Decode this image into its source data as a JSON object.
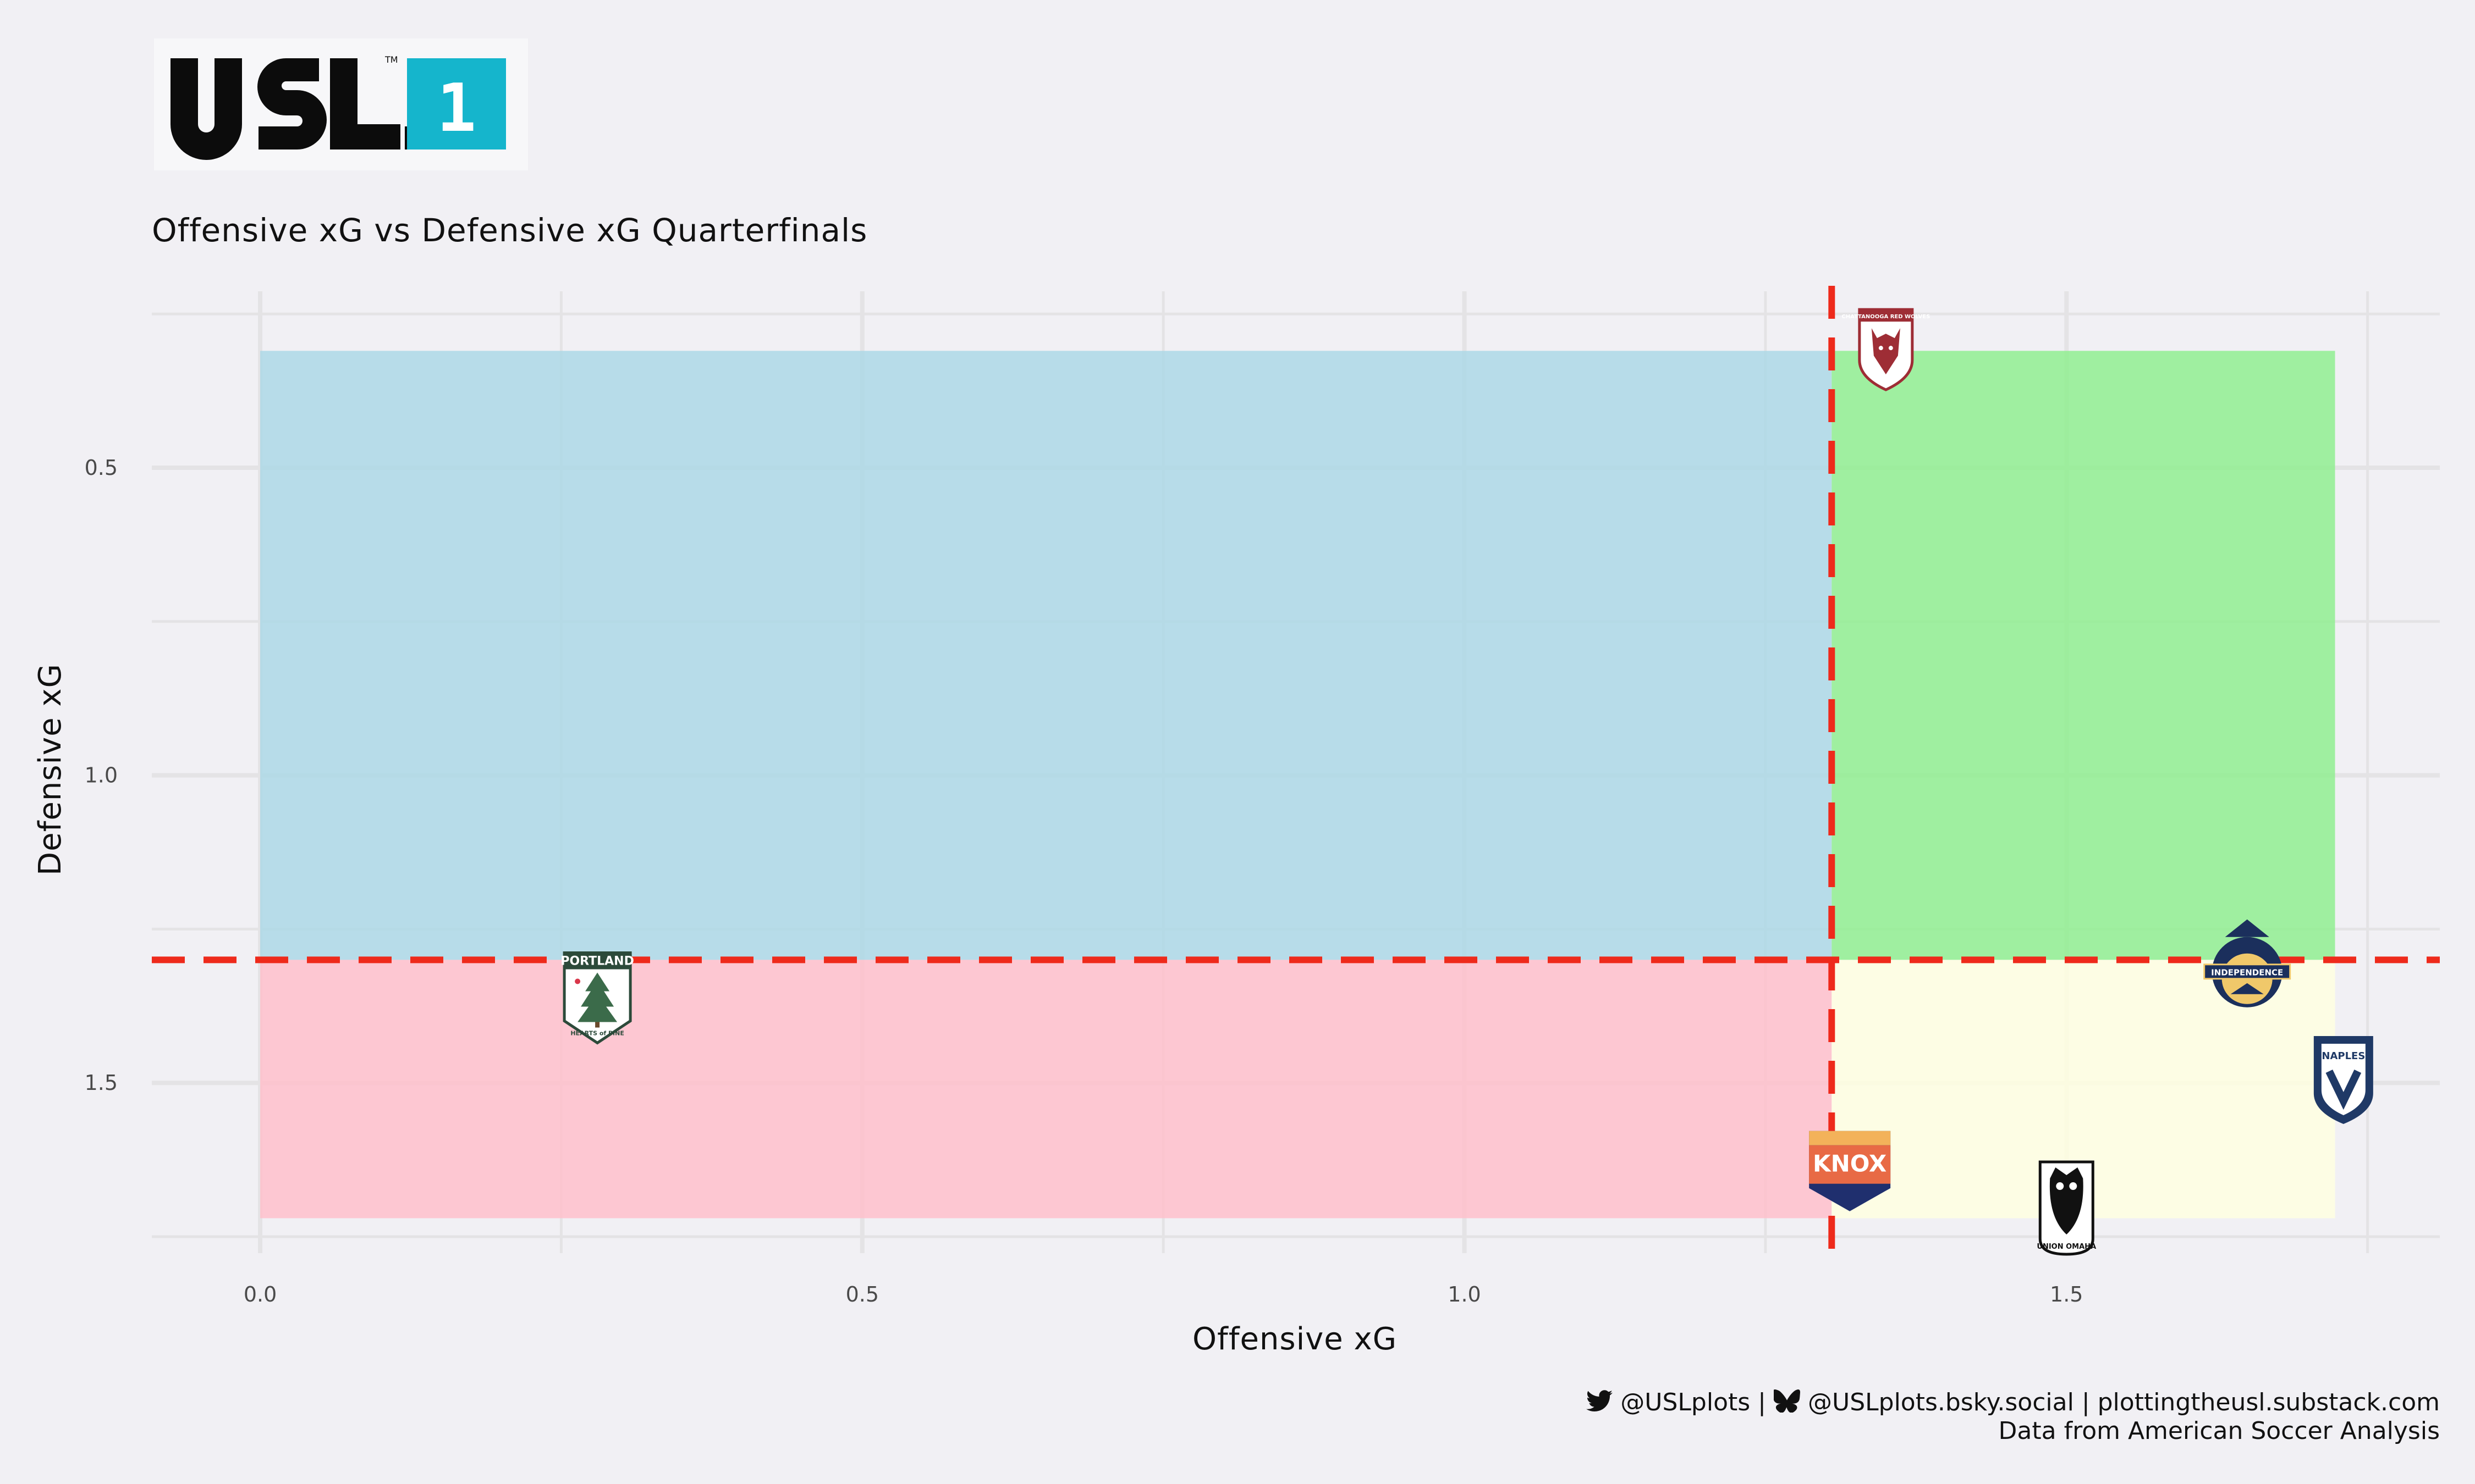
{
  "logo": {
    "wordmark": "USL",
    "badge": "1",
    "tm": "TM",
    "badge_color": "#15b5cc"
  },
  "chart_data": {
    "type": "scatter",
    "title": "Offensive xG vs Defensive xG Quarterfinals",
    "xlabel": "Offensive xG",
    "ylabel": "Defensive xG",
    "xlim": [
      -0.09,
      1.81
    ],
    "ylim": [
      1.75,
      0.24
    ],
    "y_reversed": true,
    "xticks": [
      0.0,
      0.5,
      1.0,
      1.5
    ],
    "xtick_labels": [
      "0.0",
      "0.5",
      "1.0",
      "1.5"
    ],
    "yticks": [
      0.5,
      1.0,
      1.5
    ],
    "ytick_labels": [
      "0.5",
      "1.0",
      "1.5"
    ],
    "grid": true,
    "reference_lines": {
      "x": 1.305,
      "y": 1.3,
      "color": "#ee2a1b"
    },
    "quadrants": [
      {
        "name": "top-left",
        "x": [
          0.0,
          1.305
        ],
        "y": [
          0.31,
          1.3
        ],
        "color": "#add8e6"
      },
      {
        "name": "top-right",
        "x": [
          1.305,
          1.723
        ],
        "y": [
          0.31,
          1.3
        ],
        "color": "#90ee90"
      },
      {
        "name": "bottom-left",
        "x": [
          0.0,
          1.305
        ],
        "y": [
          1.3,
          1.72
        ],
        "color": "#ffc0cb"
      },
      {
        "name": "bottom-right",
        "x": [
          1.305,
          1.723
        ],
        "y": [
          1.3,
          1.72
        ],
        "color": "#ffffe0"
      }
    ],
    "points": [
      {
        "team": "Chattanooga Red Wolves",
        "badge_text": "CHATTANOOGA RED WOLVES",
        "x": 1.35,
        "y": 0.3,
        "icon": "wolf-crest-icon",
        "color": "#9e2d35"
      },
      {
        "team": "Portland Hearts of Pine",
        "badge_text": "PORTLAND",
        "badge_text2": "HEARTS of PINE",
        "x": 0.28,
        "y": 1.36,
        "icon": "pine-tree-crest-icon",
        "color": "#2c4a3a"
      },
      {
        "team": "Charlotte Independence",
        "badge_text": "INDEPENDENCE",
        "x": 1.65,
        "y": 1.32,
        "icon": "independence-crest-icon",
        "color": "#1b2f5c"
      },
      {
        "team": "Naples",
        "badge_text": "NAPLES",
        "x": 1.73,
        "y": 1.49,
        "icon": "naples-crest-icon",
        "color": "#1f3966"
      },
      {
        "team": "One Knoxville",
        "badge_text": "KNOX",
        "x": 1.32,
        "y": 1.63,
        "icon": "knox-crest-icon",
        "color": "#e0603a"
      },
      {
        "team": "Union Omaha",
        "badge_text": "UNION OMAHA",
        "x": 1.5,
        "y": 1.7,
        "icon": "owl-crest-icon",
        "color": "#111111"
      }
    ]
  },
  "credits": {
    "handles": "@USLplots | ",
    "bluesky": "@USLplots.bsky.social | plottingtheusl.substack.com",
    "source": "Data from American Soccer Analysis",
    "twitter_icon": "twitter-bird-icon",
    "bluesky_icon": "butterfly-icon"
  }
}
